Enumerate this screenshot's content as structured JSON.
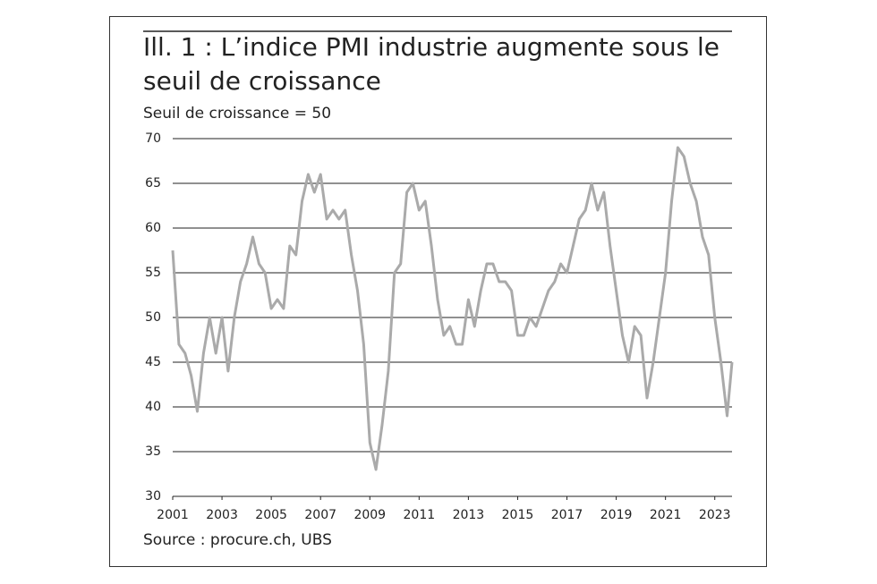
{
  "chart_data": {
    "type": "line",
    "title": "Ill. 1 : L’indice PMI industrie augmente sous le seuil de croissance",
    "subtitle": "Seuil de croissance = 50",
    "source": "Source : procure.ch, UBS",
    "x": [
      2001.0,
      2001.25,
      2001.5,
      2001.75,
      2002.0,
      2002.25,
      2002.5,
      2002.75,
      2003.0,
      2003.25,
      2003.5,
      2003.75,
      2004.0,
      2004.25,
      2004.5,
      2004.75,
      2005.0,
      2005.25,
      2005.5,
      2005.75,
      2006.0,
      2006.25,
      2006.5,
      2006.75,
      2007.0,
      2007.25,
      2007.5,
      2007.75,
      2008.0,
      2008.25,
      2008.5,
      2008.75,
      2009.0,
      2009.25,
      2009.5,
      2009.75,
      2010.0,
      2010.25,
      2010.5,
      2010.75,
      2011.0,
      2011.25,
      2011.5,
      2011.75,
      2012.0,
      2012.25,
      2012.5,
      2012.75,
      2013.0,
      2013.25,
      2013.5,
      2013.75,
      2014.0,
      2014.25,
      2014.5,
      2014.75,
      2015.0,
      2015.25,
      2015.5,
      2015.75,
      2016.0,
      2016.25,
      2016.5,
      2016.75,
      2017.0,
      2017.25,
      2017.5,
      2017.75,
      2018.0,
      2018.25,
      2018.5,
      2018.75,
      2019.0,
      2019.25,
      2019.5,
      2019.75,
      2020.0,
      2020.25,
      2020.5,
      2020.75,
      2021.0,
      2021.25,
      2021.5,
      2021.75,
      2022.0,
      2022.25,
      2022.5,
      2022.75,
      2023.0,
      2023.25,
      2023.5,
      2023.7
    ],
    "series": [
      {
        "color": "#aaaaaa",
        "values": [
          57.5,
          47,
          46,
          43.5,
          39.5,
          46,
          50,
          46,
          50,
          44,
          50,
          54,
          56,
          59,
          56,
          55,
          51,
          52,
          51,
          58,
          57,
          63,
          66,
          64,
          66,
          61,
          62,
          61,
          62,
          57,
          53,
          47,
          36,
          33,
          38,
          44,
          55,
          56,
          64,
          65,
          62,
          63,
          58,
          52,
          48,
          49,
          47,
          47,
          52,
          49,
          53,
          56,
          56,
          54,
          54,
          53,
          48,
          48,
          50,
          49,
          51,
          53,
          54,
          56,
          55,
          58,
          61,
          62,
          65,
          62,
          64,
          58,
          53,
          48,
          45,
          49,
          48,
          41,
          45,
          50,
          55,
          63,
          69,
          68,
          65,
          63,
          59,
          57,
          50,
          45,
          39,
          45
        ]
      }
    ],
    "xlim": [
      2001,
      2023.7
    ],
    "xticks": [
      2001,
      2003,
      2005,
      2007,
      2009,
      2011,
      2013,
      2015,
      2017,
      2019,
      2021,
      2023
    ],
    "ylim": [
      30,
      70
    ],
    "yticks": [
      30,
      35,
      40,
      45,
      50,
      55,
      60,
      65,
      70
    ],
    "grid": true
  }
}
